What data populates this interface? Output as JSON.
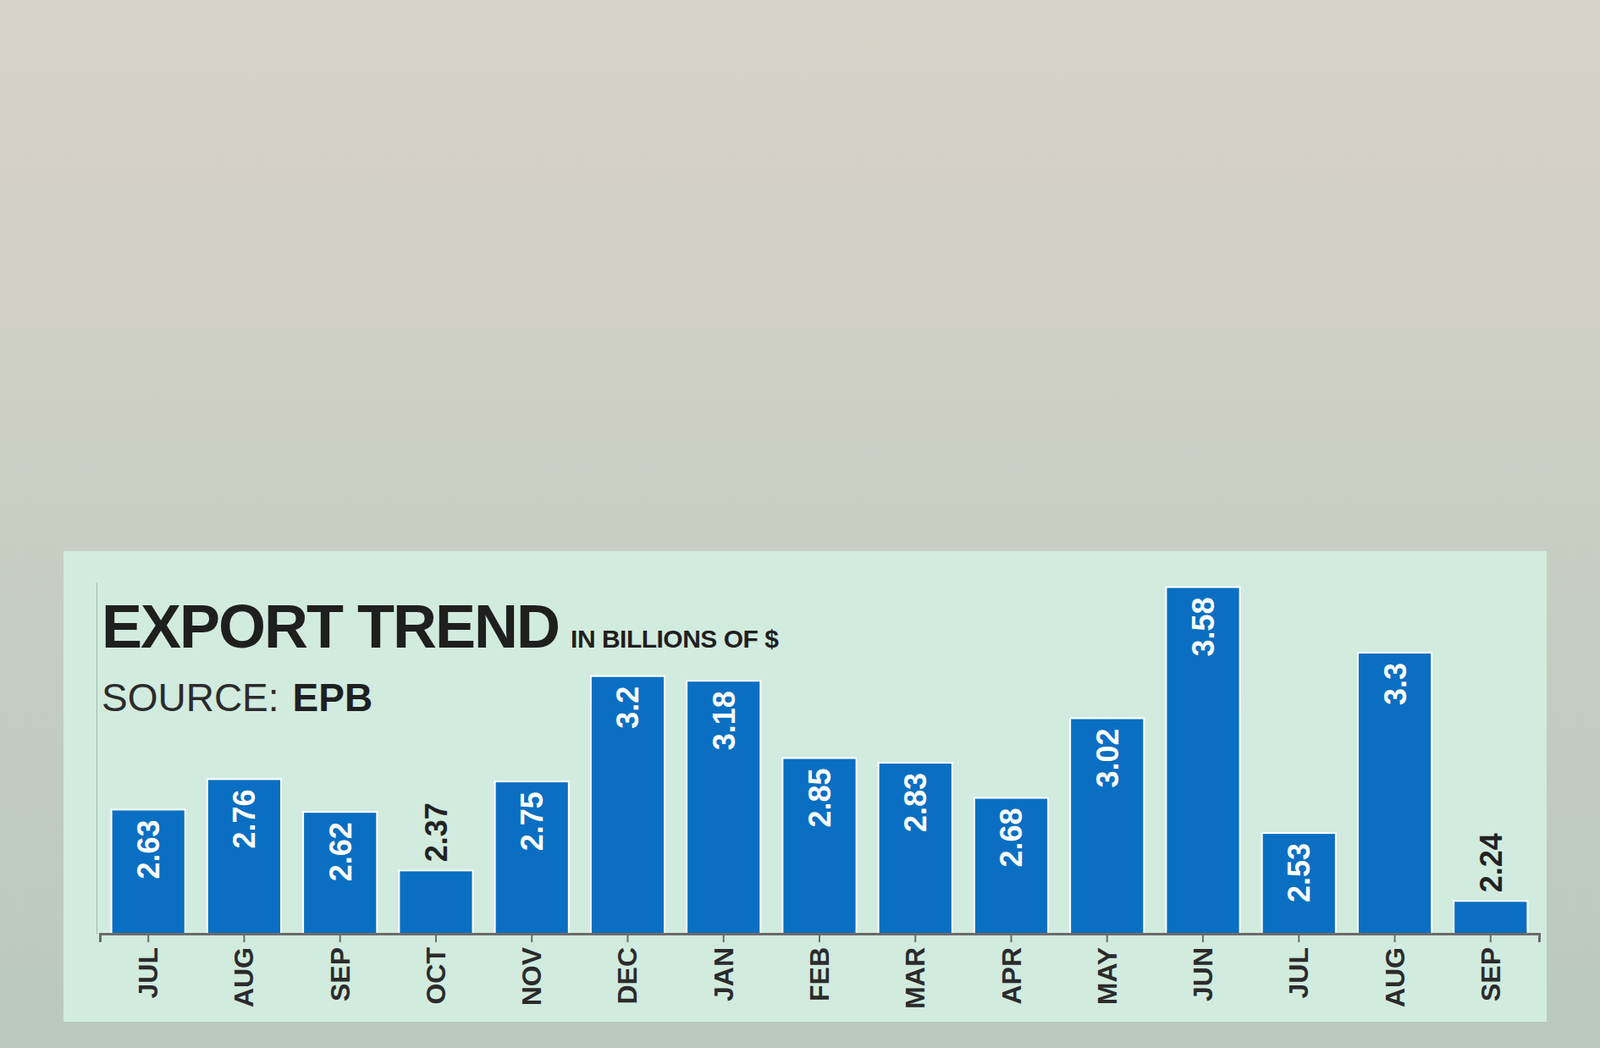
{
  "chart_data": {
    "type": "bar",
    "title": "EXPORT TREND",
    "subtitle": "IN BILLIONS OF $",
    "source_label": "SOURCE:",
    "source": "EPB",
    "categories": [
      "JUL",
      "AUG",
      "SEP",
      "OCT",
      "NOV",
      "DEC",
      "JAN",
      "FEB",
      "MAR",
      "APR",
      "MAY",
      "JUN",
      "JUL",
      "AUG",
      "SEP"
    ],
    "values": [
      2.63,
      2.76,
      2.62,
      2.37,
      2.75,
      3.2,
      3.18,
      2.85,
      2.83,
      2.68,
      3.02,
      3.58,
      2.53,
      3.3,
      2.24
    ],
    "color": "#0a6fc2",
    "ylim": [
      2.1,
      3.6
    ],
    "yticks": [],
    "tick_labels": "x",
    "data_labels": true,
    "grid": false
  }
}
